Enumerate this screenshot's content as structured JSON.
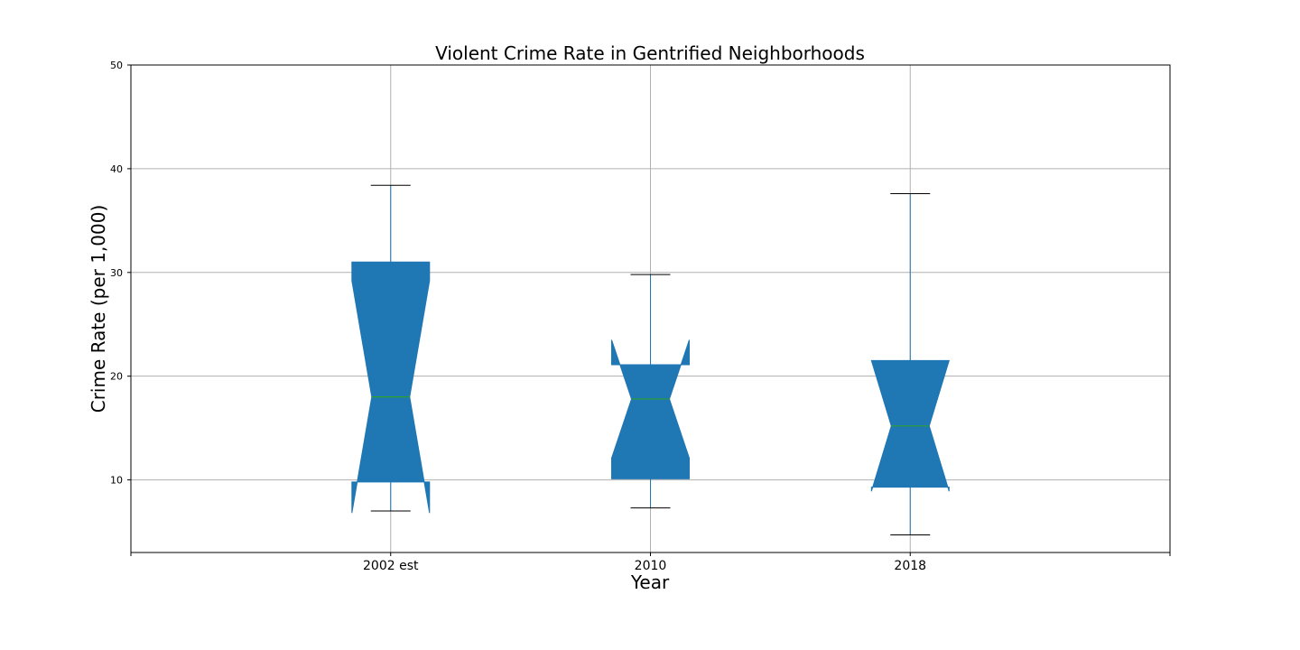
{
  "chart_data": {
    "type": "box",
    "title": "Violent Crime Rate in Gentrified Neighborhoods",
    "xlabel": "Year",
    "ylabel": "Crime Rate (per 1,000)",
    "ylim": [
      3,
      50
    ],
    "yticks": [
      10,
      20,
      30,
      40,
      50
    ],
    "grid": true,
    "notched": true,
    "categories": [
      "2002 est",
      "2010",
      "2018"
    ],
    "boxes": [
      {
        "category": "2002 est",
        "whisker_low": 7.0,
        "q1": 9.8,
        "median": 18.0,
        "q3": 31.0,
        "whisker_high": 38.4,
        "notch_low": 6.8,
        "notch_high": 29.2
      },
      {
        "category": "2010",
        "whisker_low": 7.3,
        "q1": 10.1,
        "median": 17.8,
        "q3": 21.1,
        "whisker_high": 29.8,
        "notch_low": 12.1,
        "notch_high": 23.5
      },
      {
        "category": "2018",
        "whisker_low": 4.7,
        "q1": 9.3,
        "median": 15.2,
        "q3": 21.5,
        "whisker_high": 37.6,
        "notch_low": 8.9,
        "notch_high": 21.5
      }
    ],
    "colors": {
      "box": "#1f77b4",
      "median": "#2ca02c",
      "whisker": "#1f77b4",
      "cap": "#000000"
    }
  }
}
